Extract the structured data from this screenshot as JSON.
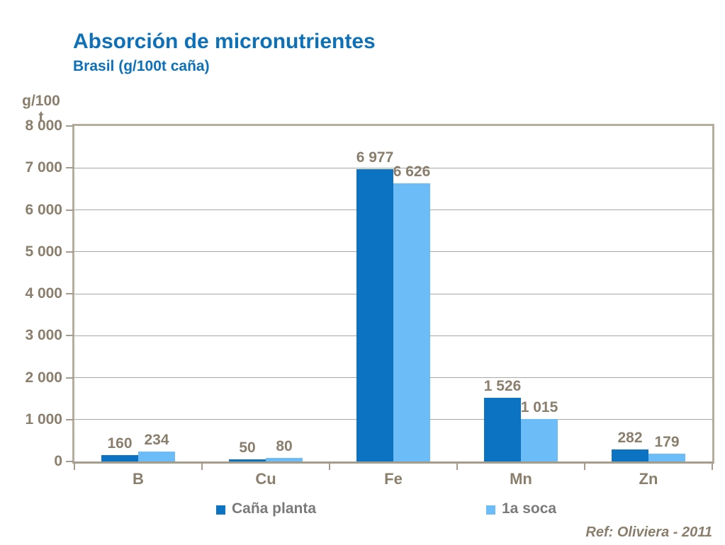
{
  "header": {
    "title": "Absorción de micronutrientes",
    "subtitle": "Brasil (g/100t caña)"
  },
  "axis": {
    "unit_line1": "g/100",
    "unit_line2": "t"
  },
  "footer": {
    "ref": "Ref: Oliviera - 2011"
  },
  "colors": {
    "title_blue": "#0e71b8",
    "series_dark_blue": "#0b73c2",
    "series_light_blue": "#6cbcf7",
    "axis_text": "#8a7e6c",
    "legend_text": "#7a7a7a",
    "frame": "#b5ad9d",
    "gridline": "#a6a6a6",
    "axis_line": "#a59c8c"
  },
  "chart_data": {
    "type": "bar",
    "title": "Absorción de micronutrientes",
    "subtitle": "Brasil (g/100t caña)",
    "ylabel": "g/100 t",
    "xlabel": "",
    "categories": [
      "B",
      "Cu",
      "Fe",
      "Mn",
      "Zn"
    ],
    "series": [
      {
        "name": "Caña planta",
        "color": "#0b73c2",
        "values": [
          160,
          50,
          6977,
          1526,
          282
        ],
        "value_labels": [
          "160",
          "50",
          "6 977",
          "1 526",
          "282"
        ]
      },
      {
        "name": "1a soca",
        "color": "#6cbcf7",
        "values": [
          234,
          80,
          6626,
          1015,
          179
        ],
        "value_labels": [
          "234",
          "80",
          "6 626",
          "1 015",
          "179"
        ]
      }
    ],
    "ylim": [
      0,
      8000
    ],
    "ytick_step": 1000,
    "ytick_labels": [
      "0",
      "1 000",
      "2 000",
      "3 000",
      "4 000",
      "5 000",
      "6 000",
      "7 000",
      "8 000"
    ],
    "grid": true,
    "legend_position": "bottom"
  }
}
